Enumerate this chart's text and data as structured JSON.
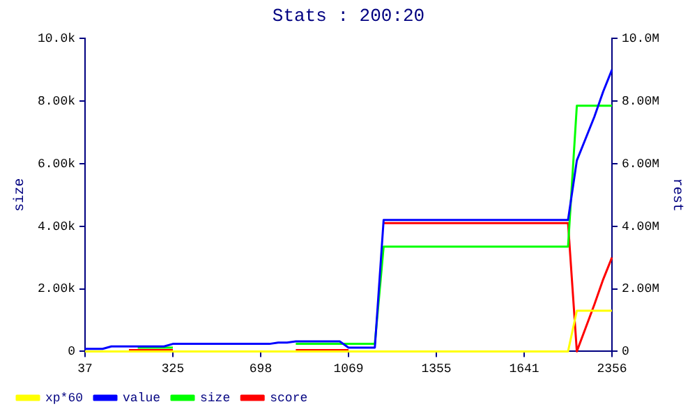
{
  "chart_data": {
    "type": "line",
    "title": "Stats : 200:20",
    "ylabel": "size",
    "y2label": "rest",
    "categories": [
      "37",
      null,
      null,
      null,
      null,
      null,
      null,
      null,
      null,
      null,
      "325",
      null,
      null,
      null,
      null,
      null,
      null,
      null,
      null,
      null,
      "698",
      null,
      null,
      null,
      null,
      null,
      null,
      null,
      null,
      null,
      "1069",
      null,
      null,
      null,
      null,
      null,
      null,
      null,
      null,
      null,
      "1355",
      null,
      null,
      null,
      null,
      null,
      null,
      null,
      null,
      null,
      "1641",
      null,
      null,
      null,
      null,
      null,
      null,
      null,
      null,
      null,
      "2356"
    ],
    "series": [
      {
        "name": "score",
        "color": "#ff0000",
        "axis": "y2",
        "values": [
          null,
          null,
          null,
          null,
          null,
          40000,
          40000,
          40000,
          40000,
          40000,
          40000,
          null,
          null,
          null,
          null,
          null,
          null,
          null,
          null,
          null,
          null,
          null,
          null,
          null,
          40000,
          40000,
          40000,
          40000,
          40000,
          40000,
          40000,
          null,
          null,
          null,
          4100000,
          4100000,
          4100000,
          4100000,
          4100000,
          4100000,
          4100000,
          4100000,
          4100000,
          4100000,
          4100000,
          4100000,
          4100000,
          4100000,
          4100000,
          4100000,
          4100000,
          4100000,
          4100000,
          4100000,
          4100000,
          4100000,
          0,
          750000,
          1500000,
          2300000,
          3000000
        ]
      },
      {
        "name": "size",
        "color": "#00ff00",
        "values": [
          null,
          null,
          null,
          null,
          null,
          null,
          120,
          120,
          120,
          120,
          120,
          null,
          null,
          null,
          null,
          null,
          null,
          null,
          null,
          null,
          null,
          null,
          null,
          null,
          240,
          240,
          240,
          240,
          240,
          240,
          240,
          240,
          240,
          240,
          3350,
          3350,
          3350,
          3350,
          3350,
          3350,
          3350,
          3350,
          3350,
          3350,
          3350,
          3350,
          3350,
          3350,
          3350,
          3350,
          3350,
          3350,
          3350,
          3350,
          3350,
          3350,
          7850,
          7850,
          7850,
          7850,
          7850
        ]
      },
      {
        "name": "value",
        "color": "#0000ff",
        "axis": "y2",
        "values": [
          80000,
          80000,
          80000,
          160000,
          160000,
          160000,
          160000,
          160000,
          160000,
          160000,
          240000,
          240000,
          240000,
          240000,
          240000,
          240000,
          240000,
          240000,
          240000,
          240000,
          240000,
          240000,
          280000,
          280000,
          320000,
          320000,
          320000,
          320000,
          320000,
          320000,
          120000,
          120000,
          120000,
          120000,
          4200000,
          4200000,
          4200000,
          4200000,
          4200000,
          4200000,
          4200000,
          4200000,
          4200000,
          4200000,
          4200000,
          4200000,
          4200000,
          4200000,
          4200000,
          4200000,
          4200000,
          4200000,
          4200000,
          4200000,
          4200000,
          4200000,
          6100000,
          6800000,
          7500000,
          8300000,
          9000000
        ]
      },
      {
        "name": "xp*60",
        "color": "#ffff00",
        "axis": "y2",
        "values": [
          0,
          0,
          0,
          0,
          0,
          0,
          0,
          0,
          0,
          0,
          0,
          0,
          0,
          0,
          0,
          0,
          0,
          0,
          0,
          0,
          0,
          0,
          0,
          0,
          0,
          0,
          0,
          0,
          0,
          0,
          0,
          0,
          0,
          0,
          0,
          0,
          0,
          0,
          0,
          0,
          0,
          0,
          0,
          0,
          0,
          0,
          0,
          0,
          0,
          0,
          0,
          0,
          0,
          0,
          0,
          0,
          1300000,
          1300000,
          1300000,
          1300000,
          1300000
        ]
      }
    ],
    "ylim": [
      0,
      10000
    ],
    "yticks": [
      0,
      {
        "value": 2000,
        "label": "2.00k"
      },
      {
        "value": 4000,
        "label": "4.00k"
      },
      {
        "value": 6000,
        "label": "6.00k"
      },
      {
        "value": 8000,
        "label": "8.00k"
      },
      {
        "value": 10000,
        "label": "10.0k"
      }
    ],
    "y2lim": [
      0,
      10000000
    ],
    "y2ticks": [
      0,
      {
        "value": 2000000,
        "label": "2.00M"
      },
      {
        "value": 4000000,
        "label": "4.00M"
      },
      {
        "value": 6000000,
        "label": "6.00M"
      },
      {
        "value": 8000000,
        "label": "8.00M"
      },
      {
        "value": 10000000,
        "label": "10.0M"
      }
    ],
    "grid": false,
    "legend": "bottom left",
    "marker": "none",
    "line_style": "solid"
  }
}
